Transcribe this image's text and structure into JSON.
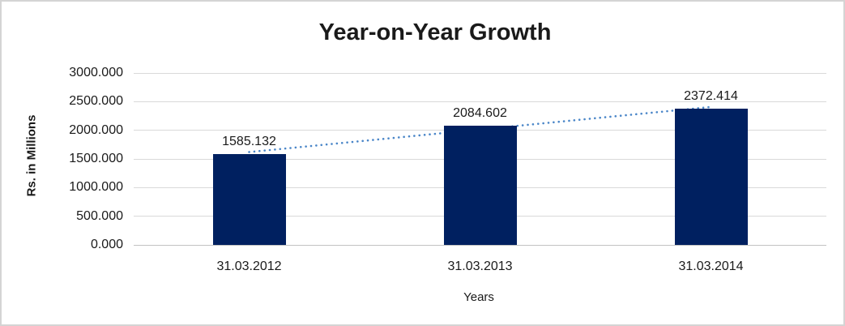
{
  "chart_data": {
    "type": "bar",
    "title": "Year-on-Year Growth",
    "xlabel": "Years",
    "ylabel": "Rs. in Millions",
    "categories": [
      "31.03.2012",
      "31.03.2013",
      "31.03.2014"
    ],
    "values": [
      1585.132,
      2084.602,
      2372.414
    ],
    "data_labels": [
      "1585.132",
      "2084.602",
      "2372.414"
    ],
    "ytick_labels": [
      "3000.000",
      "2500.000",
      "2000.000",
      "1500.000",
      "1000.000",
      "500.000",
      "0.000"
    ],
    "ylim": [
      0,
      3000
    ],
    "ytick_interval": 500,
    "grid": "horizontal",
    "legend": "none",
    "bar_color": "#002060",
    "gridline_color": "#d9d9d9",
    "trendline": {
      "type": "linear",
      "style": "dotted",
      "color": "#4a86c8"
    }
  }
}
